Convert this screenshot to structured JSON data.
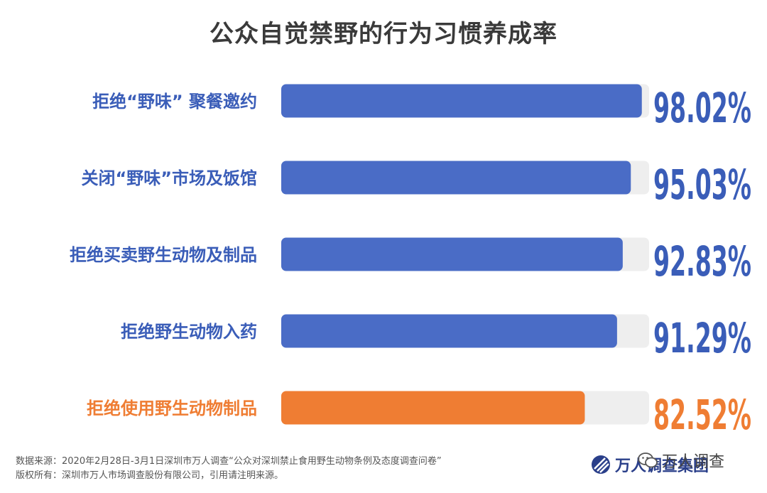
{
  "title": "公众自觉禁野的行为习惯养成率",
  "chart_data": {
    "type": "bar",
    "orientation": "horizontal",
    "title": "公众自觉禁野的行为习惯养成率",
    "categories": [
      "拒绝“野味” 聚餐邀约",
      "关闭“野味”市场及饭馆",
      "拒绝买卖野生动物及制品",
      "拒绝野生动物入药",
      "拒绝使用野生动物制品"
    ],
    "values": [
      98.02,
      95.03,
      92.83,
      91.29,
      82.52
    ],
    "value_labels": [
      "98.02%",
      "95.03%",
      "92.83%",
      "91.29%",
      "82.52%"
    ],
    "xlim": [
      0,
      100
    ],
    "grid": false,
    "colors": {
      "bar": "#4a6cc6",
      "highlight_bar": "#ef7d33",
      "track": "#eeeeee",
      "label": "#3a5db8",
      "highlight_label": "#ef7d33"
    },
    "highlight_index": 4
  },
  "footer": {
    "source": "数据来源：2020年2月28日-3月1日深圳市万人调查“公众对深圳禁止食用野生动物条例及态度调查问卷”",
    "copyright": "版权所有：深圳市万人市场调查股份有限公司，引用请注明来源。"
  },
  "brand": {
    "name": "万人调查集团",
    "logo_icon": "brand-logo-icon"
  },
  "wechat": {
    "label": "万人调查",
    "icon": "wechat-icon"
  }
}
